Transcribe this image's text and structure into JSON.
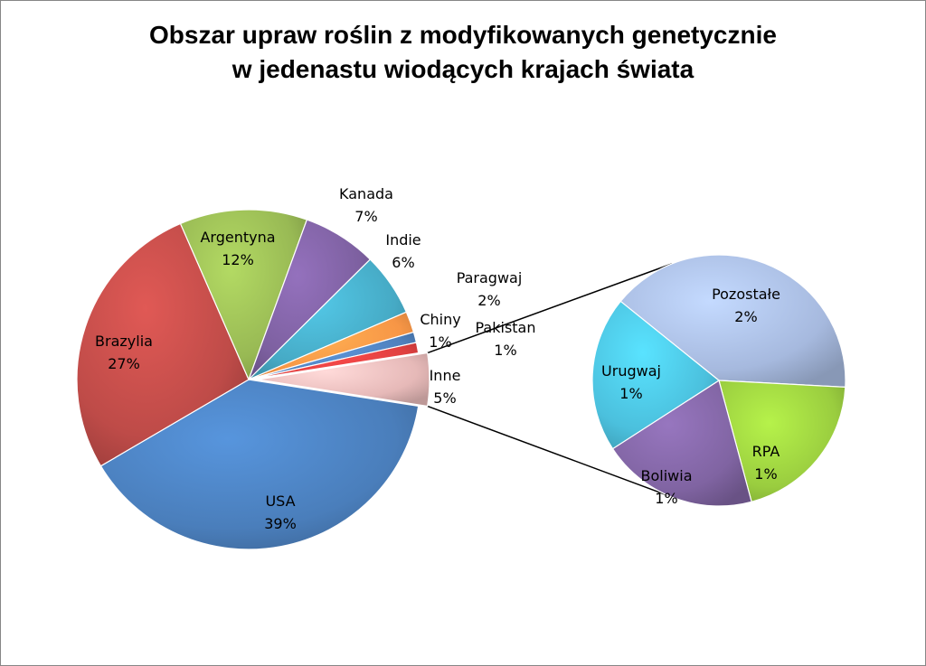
{
  "chart_data": {
    "type": "pie",
    "title_lines": [
      "Obszar upraw roślin z modyfikowanych genetycznie",
      "w jedenastu wiodących krajach świata"
    ],
    "main_pie": {
      "slices": [
        {
          "name": "USA",
          "label": "39%",
          "value": 39,
          "color": "#4a7ebb"
        },
        {
          "name": "Brazylia",
          "label": "27%",
          "value": 27,
          "color": "#be4b48"
        },
        {
          "name": "Argentyna",
          "label": "12%",
          "value": 12,
          "color": "#98b954"
        },
        {
          "name": "Kanada",
          "label": "7%",
          "value": 7,
          "color": "#7d60a0"
        },
        {
          "name": "Indie",
          "label": "6%",
          "value": 6,
          "color": "#46aac5"
        },
        {
          "name": "Paragwaj",
          "label": "2%",
          "value": 2,
          "color": "#f79646"
        },
        {
          "name": "Chiny",
          "label": "1%",
          "value": 1,
          "color": "#4f81bd"
        },
        {
          "name": "Pakistan",
          "label": "1%",
          "value": 1,
          "color": "#e04040"
        },
        {
          "name": "Inne",
          "label": "5%",
          "value": 5,
          "color": "#e6b9b8"
        }
      ]
    },
    "secondary_pie": {
      "of": "Inne",
      "slices": [
        {
          "name": "Pozostałe",
          "label": "2%",
          "value": 2,
          "color": "#a6b9de"
        },
        {
          "name": "RPA",
          "label": "1%",
          "value": 1,
          "color": "#9acd3f"
        },
        {
          "name": "Boliwia",
          "label": "1%",
          "value": 1,
          "color": "#8064a2"
        },
        {
          "name": "Urugwaj",
          "label": "1%",
          "value": 1,
          "color": "#4bc0dd"
        }
      ]
    }
  }
}
